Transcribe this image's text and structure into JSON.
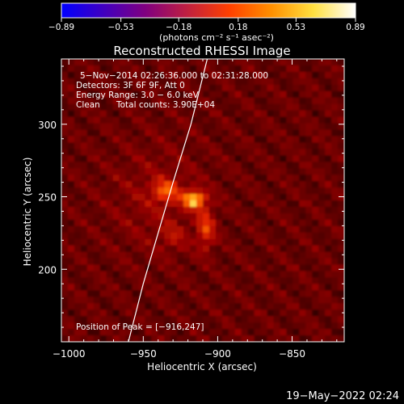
{
  "chart_data": {
    "type": "heatmap",
    "title": "Reconstructed RHESSI Image",
    "xlabel": "Heliocentric X (arcsec)",
    "ylabel": "Heliocentric Y (arcsec)",
    "xlim": [
      -1005,
      -815
    ],
    "ylim": [
      150,
      345
    ],
    "xticks": [
      -1000,
      -950,
      -900,
      -850
    ],
    "xtick_labels": [
      "−1000",
      "−950",
      "−900",
      "−850"
    ],
    "yticks": [
      200,
      250,
      300
    ],
    "ytick_labels": [
      "200",
      "250",
      "300"
    ],
    "colorbar": {
      "range": [
        -0.89,
        0.89
      ],
      "ticks": [
        -0.89,
        -0.53,
        -0.18,
        0.18,
        0.53,
        0.89
      ],
      "tick_labels": [
        "−0.89",
        "−0.53",
        "−0.18",
        "0.18",
        "0.53",
        "0.89"
      ],
      "label": "(photons cm⁻² s⁻¹ asec⁻²)",
      "colors": [
        "#0000ff",
        "#4000c0",
        "#800080",
        "#c02040",
        "#ff4000",
        "#ff9000",
        "#ffe040",
        "#ffffff"
      ]
    },
    "annotations": [
      "5−Nov−2014 02:26:36.000 to 02:31:28.000",
      "Detectors: 3F 6F 9F, Att 0",
      "Energy Range: 3.0 − 6.0 keV",
      "Clean",
      "Total counts: 3.90E+04",
      "Position of Peak = [−916,247]"
    ],
    "peak": {
      "x": -916,
      "y": 247
    },
    "limb_curve": [
      {
        "x": -960,
        "y": 150
      },
      {
        "x": -950,
        "y": 190
      },
      {
        "x": -940,
        "y": 225
      },
      {
        "x": -930,
        "y": 260
      },
      {
        "x": -918,
        "y": 300
      },
      {
        "x": -907,
        "y": 345
      }
    ],
    "sources": [
      {
        "x": -916,
        "y": 248,
        "sx": 5,
        "sy": 4,
        "amp": 0.62
      },
      {
        "x": -935,
        "y": 254,
        "sx": 6,
        "sy": 5,
        "amp": 0.34
      },
      {
        "x": -908,
        "y": 228,
        "sx": 4,
        "sy": 10,
        "amp": 0.3
      },
      {
        "x": -930,
        "y": 222,
        "sx": 6,
        "sy": 6,
        "amp": 0.12
      },
      {
        "x": -940,
        "y": 248,
        "sx": 22,
        "sy": 26,
        "amp": 0.1
      }
    ],
    "background_level": 0.24
  },
  "footer": {
    "timestamp": "19−May−2022 02:24"
  }
}
